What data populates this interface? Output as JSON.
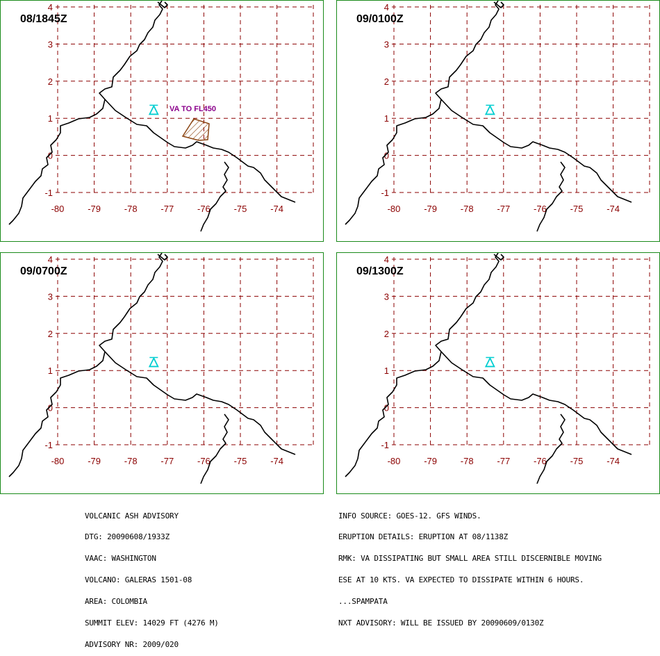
{
  "panels": [
    {
      "time": "08/1845Z",
      "va_label": "VA TO FL450",
      "has_ash": true
    },
    {
      "time": "09/0100Z",
      "va_label": "",
      "has_ash": false
    },
    {
      "time": "09/0700Z",
      "va_label": "",
      "has_ash": false
    },
    {
      "time": "09/1300Z",
      "va_label": "",
      "has_ash": false
    }
  ],
  "axis": {
    "lon_ticks": [
      "-80",
      "-79",
      "-78",
      "-77",
      "-76",
      "-75",
      "-74"
    ],
    "lat_ticks": [
      "4",
      "3",
      "2",
      "1",
      "0",
      "-1"
    ]
  },
  "volcano": {
    "name": "GALERAS",
    "lon": -77.37,
    "lat": 1.22,
    "icon": "volcano-triangle-icon"
  },
  "colors": {
    "border": "#1a8a1a",
    "grid": "#8b0000",
    "volcano": "#00ced1",
    "ash": "#8b4513",
    "label": "#8b008b"
  },
  "advisory_left": [
    "VOLCANIC ASH ADVISORY",
    "DTG: 20090608/1933Z",
    "VAAC: WASHINGTON",
    "VOLCANO: GALERAS 1501-08",
    "AREA: COLOMBIA",
    "SUMMIT ELEV: 14029 FT (4276 M)",
    "ADVISORY NR: 2009/020"
  ],
  "advisory_right": [
    "INFO SOURCE: GOES-12. GFS WINDS.",
    "ERUPTION DETAILS: ERUPTION AT 08/1138Z",
    "RMK: VA DISSIPATING BUT SMALL AREA STILL DISCERNIBLE MOVING",
    "ESE AT 10 KTS. VA EXPECTED TO DISSIPATE WITHIN 6 HOURS.",
    "...SPAMPATA",
    "NXT ADVISORY: WILL BE ISSUED BY 20090609/0130Z"
  ]
}
